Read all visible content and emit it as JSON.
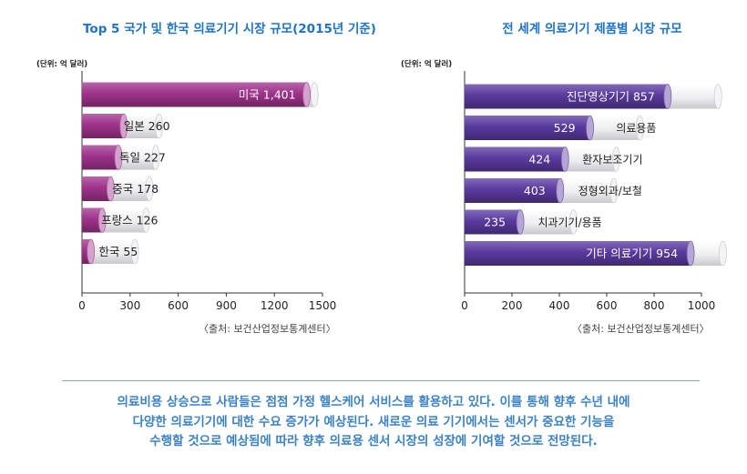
{
  "colors": {
    "title": "#1e73c8",
    "summary": "#3b82c8",
    "left_bar": "#a0338c",
    "right_bar": "#5a3aa0",
    "cylinder_shell": "#e8e8ea",
    "axis": "#333333"
  },
  "chart_data": [
    {
      "type": "bar",
      "orientation": "horizontal",
      "title": "Top 5 국가 및 한국 의료기기 시장 규모(2015년 기준)",
      "unit_label": "(단위: 억 달러)",
      "source": "〈출처: 보건산업정보통계센터〉",
      "categories": [
        "미국",
        "일본",
        "독일",
        "중국",
        "프랑스",
        "한국"
      ],
      "value_labels": [
        "1,401",
        "260",
        "227",
        "178",
        "126",
        "55"
      ],
      "values": [
        1401,
        260,
        227,
        178,
        126,
        55
      ],
      "xlim": [
        0,
        1500
      ],
      "xticks": [
        "0",
        "300",
        "600",
        "900",
        "1200",
        "1500"
      ],
      "xtick_values": [
        0,
        300,
        600,
        900,
        1200,
        1500
      ],
      "shell_values": [
        1450,
        480,
        460,
        420,
        400,
        330
      ]
    },
    {
      "type": "bar",
      "orientation": "horizontal",
      "title": "전 세계 의료기기 제품별 시장 규모",
      "unit_label": "(단위: 억 달러)",
      "source": "〈출처: 보건산업정보통계센터〉",
      "categories": [
        "진단영상기기",
        "의료용품",
        "환자보조기기",
        "정형외과/보철",
        "치과기기/용품",
        "기타 의료기기"
      ],
      "value_labels": [
        "857",
        "529",
        "424",
        "403",
        "235",
        "954"
      ],
      "values": [
        857,
        529,
        424,
        403,
        235,
        954
      ],
      "xlim": [
        0,
        1000
      ],
      "xticks": [
        "0",
        "200",
        "400",
        "600",
        "800",
        "1000"
      ],
      "xtick_values": [
        0,
        200,
        400,
        600,
        800,
        1000
      ],
      "shell_values": [
        1070,
        740,
        640,
        630,
        460,
        1090
      ]
    }
  ],
  "summary_lines": [
    "의료비용 상승으로 사람들은 점점 가정 헬스케어 서비스를 활용하고 있다. 이를 통해 향후 수년 내에",
    "다양한 의료기기에 대한 수요 증가가 예상된다. 새로운 의료 기기에서는 센서가 중요한 기능을",
    "수행할 것으로 예상됨에 따라 향후 의료용 센서 시장의 성장에 기여할 것으로 전망된다."
  ]
}
